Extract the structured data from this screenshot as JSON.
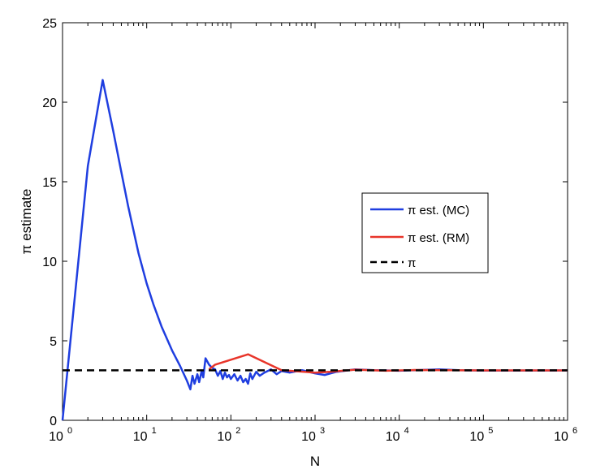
{
  "chart_data": {
    "type": "line",
    "xscale": "log",
    "xlabel": "N",
    "ylabel": "π estimate",
    "xlim": [
      1,
      1000000
    ],
    "ylim": [
      0,
      25
    ],
    "grid": false,
    "legend_position": "right",
    "x_ticks": [
      {
        "base": "10",
        "exp": "0",
        "value": 1
      },
      {
        "base": "10",
        "exp": "1",
        "value": 10
      },
      {
        "base": "10",
        "exp": "2",
        "value": 100
      },
      {
        "base": "10",
        "exp": "3",
        "value": 1000
      },
      {
        "base": "10",
        "exp": "4",
        "value": 10000
      },
      {
        "base": "10",
        "exp": "5",
        "value": 100000
      },
      {
        "base": "10",
        "exp": "6",
        "value": 1000000
      }
    ],
    "y_ticks": [
      "0",
      "5",
      "10",
      "15",
      "20",
      "25"
    ],
    "series": [
      {
        "name": "π est. (MC)",
        "color": "#1f3ee0",
        "style": "solid",
        "points": [
          [
            1,
            0
          ],
          [
            2,
            16.0
          ],
          [
            3,
            21.4
          ],
          [
            4,
            18.2
          ],
          [
            5,
            15.6
          ],
          [
            6,
            13.5
          ],
          [
            8,
            10.5
          ],
          [
            10,
            8.6
          ],
          [
            12,
            7.3
          ],
          [
            15,
            5.9
          ],
          [
            20,
            4.4
          ],
          [
            25,
            3.4
          ],
          [
            30,
            2.5
          ],
          [
            33,
            1.95
          ],
          [
            35,
            2.8
          ],
          [
            37,
            2.3
          ],
          [
            40,
            2.9
          ],
          [
            42,
            2.4
          ],
          [
            45,
            3.1
          ],
          [
            47,
            2.7
          ],
          [
            50,
            3.9
          ],
          [
            55,
            3.5
          ],
          [
            60,
            3.3
          ],
          [
            65,
            3.2
          ],
          [
            70,
            2.8
          ],
          [
            75,
            3.1
          ],
          [
            80,
            2.6
          ],
          [
            85,
            3.0
          ],
          [
            90,
            2.7
          ],
          [
            95,
            2.85
          ],
          [
            100,
            2.6
          ],
          [
            110,
            2.9
          ],
          [
            120,
            2.5
          ],
          [
            130,
            2.8
          ],
          [
            140,
            2.4
          ],
          [
            150,
            2.6
          ],
          [
            160,
            2.3
          ],
          [
            170,
            2.95
          ],
          [
            180,
            2.6
          ],
          [
            200,
            3.05
          ],
          [
            220,
            2.8
          ],
          [
            250,
            3.0
          ],
          [
            300,
            3.2
          ],
          [
            350,
            2.9
          ],
          [
            400,
            3.1
          ],
          [
            500,
            3.0
          ],
          [
            700,
            3.15
          ],
          [
            1000,
            2.95
          ],
          [
            1300,
            2.85
          ],
          [
            1800,
            3.05
          ],
          [
            3000,
            3.2
          ],
          [
            5000,
            3.15
          ],
          [
            10000,
            3.12
          ],
          [
            20000,
            3.17
          ],
          [
            30000,
            3.2
          ],
          [
            50000,
            3.15
          ],
          [
            100000,
            3.13
          ],
          [
            1000000,
            3.14
          ]
        ]
      },
      {
        "name": "π est. (RM)",
        "color": "#e8352a",
        "style": "solid",
        "points": [
          [
            55,
            3.2
          ],
          [
            65,
            3.5
          ],
          [
            160,
            4.15
          ],
          [
            400,
            3.15
          ],
          [
            1000,
            3.0
          ],
          [
            1500,
            3.05
          ],
          [
            3000,
            3.18
          ],
          [
            7000,
            3.12
          ],
          [
            15000,
            3.16
          ],
          [
            40000,
            3.15
          ],
          [
            100000,
            3.14
          ],
          [
            1000000,
            3.14
          ]
        ]
      },
      {
        "name": "π",
        "color": "#000000",
        "style": "dashed",
        "points": [
          [
            1,
            3.14159
          ],
          [
            1000000,
            3.14159
          ]
        ]
      }
    ]
  }
}
